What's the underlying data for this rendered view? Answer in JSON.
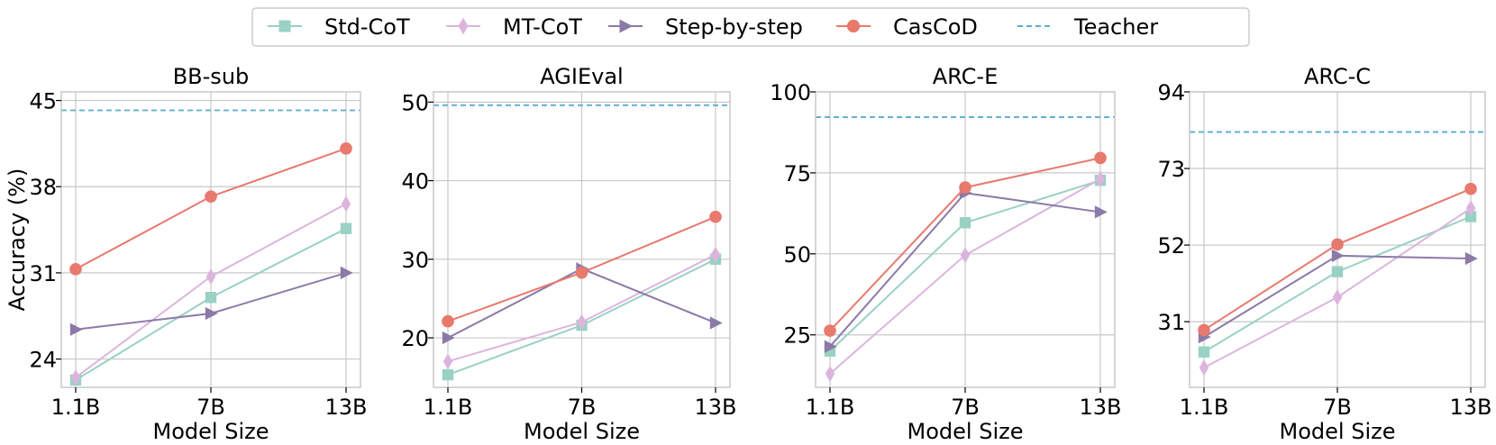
{
  "legend": [
    {
      "label": "Std-CoT",
      "color": "#99d1c4",
      "marker": "square"
    },
    {
      "label": "MT-CoT",
      "color": "#dcb5dd",
      "marker": "diamond"
    },
    {
      "label": "Step-by-step",
      "color": "#8b7aa8",
      "marker": "triangle-right"
    },
    {
      "label": "CasCoD",
      "color": "#e8796d",
      "marker": "circle"
    },
    {
      "label": "Teacher",
      "color": "#5aaed0",
      "marker": "dashed-line"
    }
  ],
  "chart_data": [
    {
      "type": "line",
      "title": "BB-sub",
      "xlabel": "Model Size",
      "ylabel": "Accuracy (%)",
      "categories": [
        "1.1B",
        "7B",
        "13B"
      ],
      "ylim": [
        21.7,
        45.7
      ],
      "yticks": [
        24,
        31,
        38,
        45
      ],
      "grid": true,
      "teacher": 44.2,
      "series": [
        {
          "name": "Std-CoT",
          "values": [
            22.3,
            29.0,
            34.6
          ]
        },
        {
          "name": "MT-CoT",
          "values": [
            22.5,
            30.7,
            36.6
          ]
        },
        {
          "name": "Step-by-step",
          "values": [
            26.4,
            27.7,
            31.0
          ]
        },
        {
          "name": "CasCoD",
          "values": [
            31.3,
            37.2,
            41.1
          ]
        }
      ]
    },
    {
      "type": "line",
      "title": "AGIEval",
      "xlabel": "Model Size",
      "ylabel": "",
      "categories": [
        "1.1B",
        "7B",
        "13B"
      ],
      "ylim": [
        13.7,
        51.3
      ],
      "yticks": [
        20,
        30,
        40,
        50
      ],
      "grid": true,
      "teacher": 49.6,
      "series": [
        {
          "name": "Std-CoT",
          "values": [
            15.3,
            21.6,
            30.0
          ]
        },
        {
          "name": "MT-CoT",
          "values": [
            17.0,
            22.0,
            30.6
          ]
        },
        {
          "name": "Step-by-step",
          "values": [
            20.0,
            28.8,
            21.9
          ]
        },
        {
          "name": "CasCoD",
          "values": [
            22.1,
            28.3,
            35.4
          ]
        }
      ]
    },
    {
      "type": "line",
      "title": "ARC-E",
      "xlabel": "Model Size",
      "ylabel": "",
      "categories": [
        "1.1B",
        "7B",
        "13B"
      ],
      "ylim": [
        8.8,
        100
      ],
      "yticks": [
        25,
        50,
        75,
        100
      ],
      "grid": true,
      "teacher": 92.2,
      "series": [
        {
          "name": "Std-CoT",
          "values": [
            20.0,
            59.6,
            72.7
          ]
        },
        {
          "name": "MT-CoT",
          "values": [
            13.0,
            49.6,
            73.1
          ]
        },
        {
          "name": "Step-by-step",
          "values": [
            21.4,
            68.8,
            62.9
          ]
        },
        {
          "name": "CasCoD",
          "values": [
            26.3,
            70.5,
            79.6
          ]
        }
      ]
    },
    {
      "type": "line",
      "title": "ARC-C",
      "xlabel": "Model Size",
      "ylabel": "",
      "categories": [
        "1.1B",
        "7B",
        "13B"
      ],
      "ylim": [
        13.0,
        94
      ],
      "yticks": [
        31,
        52,
        73,
        94
      ],
      "grid": true,
      "teacher": 83.0,
      "series": [
        {
          "name": "Std-CoT",
          "values": [
            22.7,
            44.7,
            59.8
          ]
        },
        {
          "name": "MT-CoT",
          "values": [
            18.4,
            37.7,
            62.1
          ]
        },
        {
          "name": "Step-by-step",
          "values": [
            26.8,
            49.1,
            48.3
          ]
        },
        {
          "name": "CasCoD",
          "values": [
            28.7,
            52.2,
            67.4
          ]
        }
      ]
    }
  ]
}
